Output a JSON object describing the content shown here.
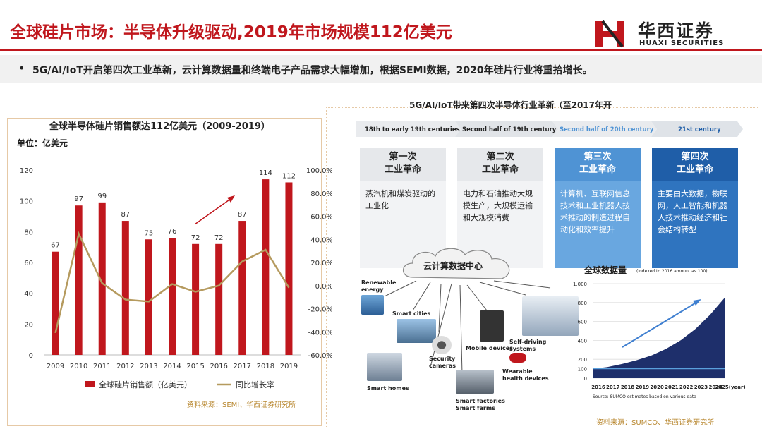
{
  "header": {
    "title": "全球硅片市场：半导体升级驱动,2019年市场规模112亿美元",
    "logo_cn": "华西证券",
    "logo_en": "HUAXI SECURITIES"
  },
  "bullet": {
    "symbol": "•",
    "text": "5G/AI/IoT开启第四次工业革新，云计算数据量和终端电子产品需求大幅增加，根据SEMI数据，2020年硅片行业将重拾增长。"
  },
  "left_panel": {
    "title": "全球半导体硅片销售额达112亿美元（2009-2019）",
    "unit": "单位：亿美元",
    "source": "资料来源：SEMI、华西证券研究所"
  },
  "right_panel": {
    "title": "5G/AI/IoT带来第四次半导体行业革新（至2017年开",
    "timeline": [
      "18th to early 19th centuries",
      "Second half of 19th century",
      "Second half of 20th century",
      "21st century"
    ],
    "eras": [
      {
        "head": "第一次\n工业革命",
        "body": "蒸汽机和煤炭驱动的工业化"
      },
      {
        "head": "第二次\n工业革命",
        "body": "电力和石油推动大规模生产，大规模运输和大规模消费"
      },
      {
        "head": "第三次\n工业革命",
        "body": "计算机、互联网信息技术和工业机器人技术推动的制造过程自动化和效率提升"
      },
      {
        "head": "第四次\n工业革命",
        "body": "主要由大数据，物联网，人工智能和机器人技术推动经济和社会结构转型"
      }
    ],
    "cloud_label": "云计算数据中心",
    "apps": [
      "Renewable energy",
      "Smart cities",
      "Security cameras",
      "Smart homes",
      "Mobile devices",
      "Self-driving systems",
      "Wearable health devices",
      "Smart factories",
      "Smart farms"
    ],
    "source": "资料来源：SUMCO、华西证券研究所"
  },
  "colors": {
    "brand_red": "#c0171d",
    "bar": "#c0171d",
    "line": "#b59a5e",
    "navy": "#1e2f6b"
  },
  "chart_data": [
    {
      "type": "bar",
      "title": "全球半导体硅片销售额达112亿美元（2009-2019）",
      "categories": [
        "2009",
        "2010",
        "2011",
        "2012",
        "2013",
        "2014",
        "2015",
        "2016",
        "2017",
        "2018",
        "2019"
      ],
      "series": [
        {
          "name": "全球硅片销售额（亿美元）",
          "type": "bar",
          "axis": "left",
          "values": [
            67,
            97,
            99,
            87,
            75,
            76,
            72,
            72,
            87,
            114,
            112
          ],
          "data_labels": true
        },
        {
          "name": "同比增长率",
          "type": "line",
          "axis": "right",
          "values": [
            -41.0,
            44.8,
            2.1,
            -12.1,
            -13.8,
            1.3,
            -5.3,
            0.0,
            20.8,
            31.0,
            -1.8
          ]
        }
      ],
      "ylim": [
        0,
        120
      ],
      "yticks": [
        0,
        20,
        40,
        60,
        80,
        100,
        120
      ],
      "y2lim": [
        -60,
        100
      ],
      "y2ticks": [
        "-60.0%",
        "-40.0%",
        "-20.0%",
        "0.0%",
        "20.0%",
        "40.0%",
        "60.0%",
        "80.0%",
        "100.0%"
      ],
      "legend": "bottom",
      "grid": false
    },
    {
      "type": "area",
      "title": "全球数据量",
      "subtitle": "(indexed to 2016 amount as 100)",
      "x": [
        "2016",
        "2017",
        "2018",
        "2019",
        "2020",
        "2021",
        "2022",
        "2023",
        "2024",
        "2025"
      ],
      "x_suffix_last": "(year)",
      "values": [
        100,
        118,
        150,
        190,
        240,
        310,
        400,
        520,
        670,
        850
      ],
      "ylim": [
        0,
        1000
      ],
      "yticks": [
        "0",
        "100",
        "200",
        "400",
        "600",
        "800",
        "1,000"
      ],
      "source_note": "Source: SUMCO estimates based on various data"
    }
  ]
}
